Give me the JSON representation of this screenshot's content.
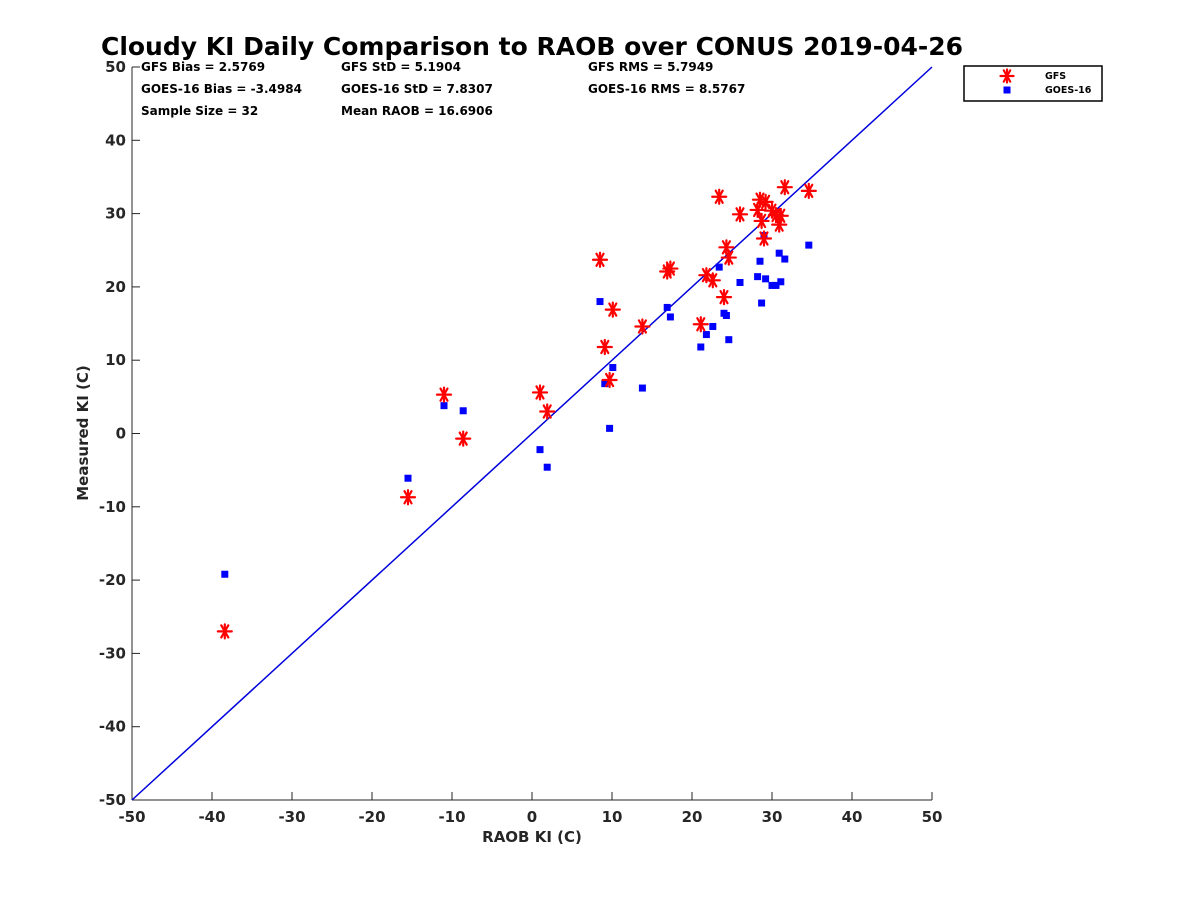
{
  "chart_data": {
    "type": "scatter",
    "title": "Cloudy KI Daily Comparison to RAOB over CONUS 2019-04-26",
    "xlabel": "RAOB KI (C)",
    "ylabel": "Measured KI (C)",
    "xlim": [
      -50,
      50
    ],
    "ylim": [
      -50,
      50
    ],
    "xticks": [
      "-50",
      "-40",
      "-30",
      "-20",
      "-10",
      "0",
      "10",
      "20",
      "30",
      "40",
      "50"
    ],
    "yticks": [
      "50",
      "40",
      "30",
      "20",
      "10",
      "0",
      "-10",
      "-20",
      "-30",
      "-40",
      "-50"
    ],
    "grid": false,
    "legend_position": "outside-top-right",
    "reference_line": {
      "x": [
        -50,
        50
      ],
      "y": [
        -50,
        50
      ],
      "color": "#0000dd"
    },
    "stats": [
      [
        "GFS Bias = 2.5769",
        "GFS StD = 5.1904",
        "GFS RMS = 5.7949"
      ],
      [
        "GOES-16 Bias = -3.4984",
        "GOES-16 StD = 7.8307",
        "GOES-16 RMS = 8.5767"
      ],
      [
        "Sample Size = 32",
        "Mean RAOB = 16.6906",
        ""
      ]
    ],
    "series": [
      {
        "name": "GFS",
        "marker": "asterisk",
        "color": "#ff0000",
        "points": [
          [
            -38.4,
            -27.0
          ],
          [
            -15.5,
            -8.7
          ],
          [
            -11.0,
            5.3
          ],
          [
            -8.6,
            -0.7
          ],
          [
            1.0,
            5.6
          ],
          [
            1.9,
            3.0
          ],
          [
            8.5,
            23.7
          ],
          [
            9.1,
            11.8
          ],
          [
            9.7,
            7.3
          ],
          [
            10.1,
            16.9
          ],
          [
            13.8,
            14.6
          ],
          [
            16.9,
            22.1
          ],
          [
            17.3,
            22.5
          ],
          [
            21.1,
            14.9
          ],
          [
            21.8,
            21.6
          ],
          [
            22.6,
            20.9
          ],
          [
            23.4,
            32.3
          ],
          [
            24.0,
            18.6
          ],
          [
            24.3,
            25.4
          ],
          [
            24.6,
            24.0
          ],
          [
            26.0,
            29.9
          ],
          [
            28.2,
            30.5
          ],
          [
            28.5,
            31.9
          ],
          [
            28.7,
            29.0
          ],
          [
            29.0,
            26.6
          ],
          [
            29.2,
            31.6
          ],
          [
            30.0,
            30.4
          ],
          [
            30.5,
            29.8
          ],
          [
            30.9,
            28.5
          ],
          [
            31.1,
            29.7
          ],
          [
            31.6,
            33.6
          ],
          [
            34.6,
            33.1
          ]
        ]
      },
      {
        "name": "GOES-16",
        "marker": "square",
        "color": "#0000ff",
        "points": [
          [
            -38.4,
            -19.2
          ],
          [
            -15.5,
            -6.1
          ],
          [
            -11.0,
            3.8
          ],
          [
            -8.6,
            3.1
          ],
          [
            1.0,
            -2.2
          ],
          [
            1.9,
            -4.6
          ],
          [
            8.5,
            18.0
          ],
          [
            9.1,
            6.8
          ],
          [
            9.7,
            0.7
          ],
          [
            10.1,
            9.0
          ],
          [
            13.8,
            6.2
          ],
          [
            16.9,
            17.2
          ],
          [
            17.3,
            15.9
          ],
          [
            21.1,
            11.8
          ],
          [
            21.8,
            13.5
          ],
          [
            22.6,
            14.6
          ],
          [
            23.4,
            22.7
          ],
          [
            24.0,
            16.4
          ],
          [
            24.3,
            16.1
          ],
          [
            24.6,
            12.8
          ],
          [
            26.0,
            20.6
          ],
          [
            28.2,
            21.4
          ],
          [
            28.5,
            23.5
          ],
          [
            28.7,
            17.8
          ],
          [
            29.0,
            27.0
          ],
          [
            29.2,
            21.1
          ],
          [
            30.0,
            20.2
          ],
          [
            30.5,
            20.2
          ],
          [
            30.9,
            24.6
          ],
          [
            31.1,
            20.7
          ],
          [
            31.6,
            23.8
          ],
          [
            34.6,
            25.7
          ]
        ]
      }
    ]
  }
}
